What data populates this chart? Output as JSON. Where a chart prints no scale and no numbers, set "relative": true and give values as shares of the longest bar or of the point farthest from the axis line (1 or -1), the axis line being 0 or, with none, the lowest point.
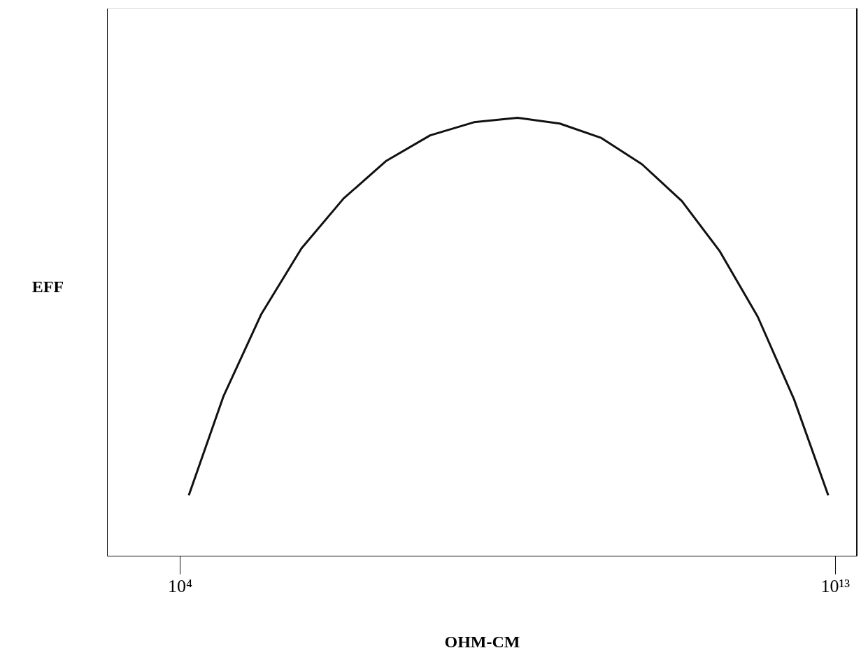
{
  "chart_data": {
    "type": "line",
    "xlabel": "OHM-CM",
    "ylabel": "EFF",
    "relative": true,
    "log": "x",
    "grid": false,
    "tick_labels": "x",
    "marker": "none",
    "line_style": "solid",
    "xlim": [
      1000,
      20000000000000
    ],
    "xticks": [
      {
        "value": 10000,
        "label": "10⁴"
      },
      {
        "value": 10000000000000,
        "label": "10¹³"
      }
    ],
    "series": [
      {
        "color": "#111111",
        "x": [
          13300,
          40000,
          132000,
          470000,
          1780000,
          6900000,
          27500000,
          110000000,
          437000000,
          1660000000,
          6200000000,
          22400000000,
          79000000000,
          263000000000,
          870000000000,
          2750000000000,
          8100000000000
        ],
        "values": [
          0.138,
          0.365,
          0.552,
          0.702,
          0.816,
          0.902,
          0.96,
          0.99,
          1,
          0.987,
          0.954,
          0.894,
          0.81,
          0.695,
          0.546,
          0.357,
          0.138
        ]
      }
    ]
  }
}
